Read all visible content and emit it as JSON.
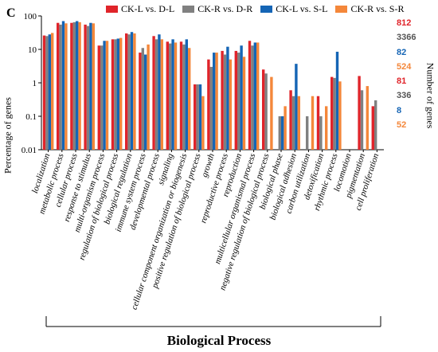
{
  "panel_label": "C",
  "legend": [
    {
      "name": "CK-L vs. D-L",
      "color": "#e0242a"
    },
    {
      "name": "CK-R vs. D-R",
      "color": "#808080"
    },
    {
      "name": "CK-L vs. S-L",
      "color": "#1565b5"
    },
    {
      "name": "CK-R vs. S-R",
      "color": "#f4873a"
    }
  ],
  "right_axis": {
    "label": "Number of genes",
    "counts": [
      {
        "value": "812",
        "color": "#e0242a"
      },
      {
        "value": "3366",
        "color": "#555555"
      },
      {
        "value": "82",
        "color": "#1565b5"
      },
      {
        "value": "524",
        "color": "#f4873a"
      },
      {
        "value": "81",
        "color": "#e0242a"
      },
      {
        "value": "336",
        "color": "#555555"
      },
      {
        "value": "8",
        "color": "#1565b5"
      },
      {
        "value": "52",
        "color": "#f4873a"
      }
    ]
  },
  "chart_data": {
    "type": "bar",
    "title": "",
    "xlabel": "Biological Process",
    "ylabel": "Percentage of genes",
    "yscale": "log",
    "ylim": [
      0.01,
      100
    ],
    "yticks": [
      "100",
      "10",
      "1",
      "0.1",
      "0.01"
    ],
    "categories": [
      "localization",
      "metabolic process",
      "cellular process",
      "response to stimulus",
      "multi-organism process",
      "regulation of biological process",
      "biological regulation",
      "immune system process",
      "developmental process",
      "signaling",
      "cellular component organization or biogenesis",
      "positive regulation of biological process",
      "growth",
      "reproductive process",
      "reproduction",
      "multicellular organismal process",
      "negative regulation of biological process",
      "biological phase",
      "biological adhesion",
      "carbon utilization",
      "detoxification",
      "rhythmic process",
      "locomotion",
      "pigmentation",
      "cell proliferation"
    ],
    "series": [
      {
        "name": "CK-L vs. D-L",
        "color": "#e0242a",
        "values": [
          26,
          62,
          62,
          55,
          13,
          20,
          30,
          8,
          25,
          17,
          17,
          0.9,
          5,
          9,
          9,
          18,
          2.5,
          null,
          0.6,
          null,
          0.4,
          1.5,
          null,
          1.6,
          0.2
        ]
      },
      {
        "name": "CK-R vs. D-R",
        "color": "#808080",
        "values": [
          25,
          55,
          65,
          50,
          13,
          20,
          28,
          11,
          20,
          15,
          14,
          0.9,
          3,
          7,
          8,
          13,
          1.9,
          0.1,
          0.4,
          0.1,
          0.1,
          1.4,
          null,
          0.6,
          0.3
        ]
      },
      {
        "name": "CK-L vs. S-L",
        "color": "#1565b5",
        "values": [
          28,
          70,
          70,
          62,
          18,
          21,
          33,
          7,
          28,
          20,
          20,
          0.9,
          8,
          12,
          13,
          16,
          null,
          0.1,
          3.7,
          null,
          null,
          8.5,
          null,
          null,
          null
        ]
      },
      {
        "name": "CK-R vs. S-R",
        "color": "#f4873a",
        "values": [
          31,
          60,
          65,
          60,
          18,
          22,
          30,
          14,
          20,
          16,
          11,
          0.4,
          8,
          5,
          6,
          16,
          1.5,
          0.2,
          0.4,
          0.4,
          0.2,
          1.1,
          null,
          0.8,
          null
        ]
      }
    ]
  }
}
